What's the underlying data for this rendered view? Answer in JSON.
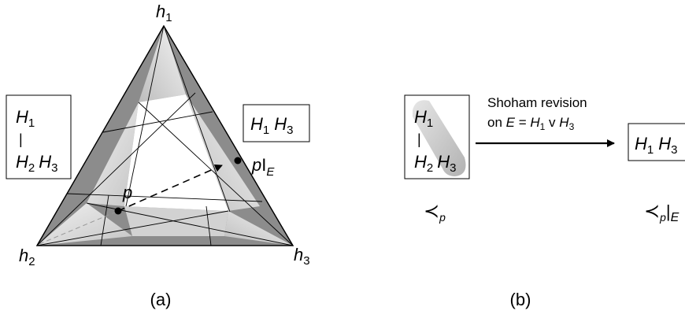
{
  "panel_a": {
    "caption": "(a)",
    "vertices": {
      "top": "h",
      "top_sub": "1",
      "left": "h",
      "left_sub": "2",
      "right": "h",
      "right_sub": "3"
    },
    "box_left": {
      "line1_a": "H",
      "line1_a_sub": "1",
      "sep": "|",
      "line2_a": "H",
      "line2_a_sub": "2",
      "line2_b": "H",
      "line2_b_sub": "3"
    },
    "box_right": {
      "a": "H",
      "a_sub": "1",
      "b": "H",
      "b_sub": "3"
    },
    "point_p": "p",
    "point_revised": "p",
    "point_revised_mid": "I",
    "point_revised_sub": "E"
  },
  "panel_b": {
    "caption": "(b)",
    "arrow_line1": "Shoham revision",
    "arrow_line2_prefix": "on ",
    "arrow_line2_E": "E",
    "arrow_line2_eq": " = ",
    "arrow_line2_H1": "H",
    "arrow_line2_H1_sub": "1",
    "arrow_line2_v": " v ",
    "arrow_line2_H3": "H",
    "arrow_line2_H3_sub": "3",
    "box_left": {
      "a": "H",
      "a_sub": "1",
      "sep": "|",
      "b": "H",
      "b_sub": "2",
      "c": "H",
      "c_sub": "3"
    },
    "box_right": {
      "a": "H",
      "a_sub": "1",
      "b": "H",
      "b_sub": "3"
    },
    "order_left": "≺",
    "order_left_sub": "p",
    "order_right": "≺",
    "order_right_sub": "p",
    "order_right_bar": "|",
    "order_right_E": "E"
  },
  "colors": {
    "dark_band": "#8a8a8a",
    "light_band": "#d9d9d9",
    "stroke": "#000000"
  }
}
